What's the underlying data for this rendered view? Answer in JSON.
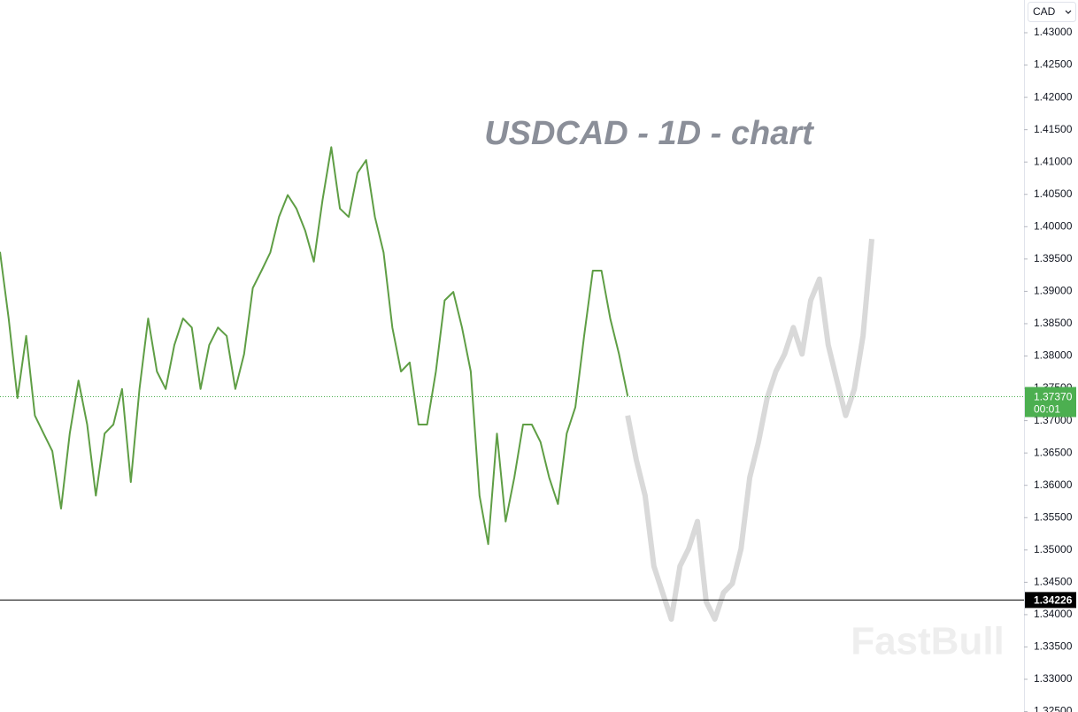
{
  "chart_data": {
    "type": "line",
    "title": "USDCAD - 1D - chart",
    "currency": "CAD",
    "watermark": "FastBull",
    "ylim": [
      1.32494,
      1.43506
    ],
    "yticks": [
      {
        "value": 1.43,
        "label": "1.43000"
      },
      {
        "value": 1.425,
        "label": "1.42500"
      },
      {
        "value": 1.42,
        "label": "1.42000"
      },
      {
        "value": 1.415,
        "label": "1.41500"
      },
      {
        "value": 1.41,
        "label": "1.41000"
      },
      {
        "value": 1.405,
        "label": "1.40500"
      },
      {
        "value": 1.4,
        "label": "1.40000"
      },
      {
        "value": 1.395,
        "label": "1.39500"
      },
      {
        "value": 1.39,
        "label": "1.39000"
      },
      {
        "value": 1.385,
        "label": "1.38500"
      },
      {
        "value": 1.38,
        "label": "1.38000"
      },
      {
        "value": 1.375,
        "label": "1.37500"
      },
      {
        "value": 1.37,
        "label": "1.37000"
      },
      {
        "value": 1.365,
        "label": "1.36500"
      },
      {
        "value": 1.36,
        "label": "1.36000"
      },
      {
        "value": 1.355,
        "label": "1.35500"
      },
      {
        "value": 1.35,
        "label": "1.35000"
      },
      {
        "value": 1.345,
        "label": "1.34500"
      },
      {
        "value": 1.34,
        "label": "1.34000"
      },
      {
        "value": 1.335,
        "label": "1.33500"
      },
      {
        "value": 1.33,
        "label": "1.33000"
      },
      {
        "value": 1.325,
        "label": "1.32500"
      }
    ],
    "current_price": {
      "value": 1.3737,
      "label": "1.37370",
      "timer": "00:01",
      "color": "#4caf50"
    },
    "level_line": {
      "value": 1.34226,
      "label": "1.34226",
      "color": "#000000"
    },
    "series": [
      {
        "color": "#5f9e45",
        "values": [
          1.3961,
          1.3858,
          1.3735,
          1.3831,
          1.3708,
          1.368,
          1.3653,
          1.3564,
          1.368,
          1.3762,
          1.3694,
          1.3584,
          1.368,
          1.3694,
          1.3749,
          1.3605,
          1.3749,
          1.3858,
          1.3776,
          1.3749,
          1.3817,
          1.3858,
          1.3844,
          1.3749,
          1.3817,
          1.3844,
          1.3831,
          1.3749,
          1.3803,
          1.3905,
          1.3932,
          1.396,
          1.4015,
          1.4049,
          1.4028,
          1.3994,
          1.3946,
          1.4041,
          1.4123,
          1.4028,
          1.4015,
          1.4083,
          1.4103,
          1.4015,
          1.396,
          1.3844,
          1.3776,
          1.379,
          1.3694,
          1.3694,
          1.3776,
          1.3886,
          1.3899,
          1.3844,
          1.3776,
          1.3584,
          1.3509,
          1.368,
          1.3544,
          1.3612,
          1.3694,
          1.3694,
          1.3667,
          1.3612,
          1.3571,
          1.368,
          1.3721,
          1.3831,
          1.3932,
          1.3932,
          1.3858,
          1.3803,
          1.3738,
          null,
          null,
          null,
          null,
          null,
          null,
          null,
          null,
          null,
          null,
          null,
          null,
          null,
          null,
          null,
          null,
          null,
          null,
          null,
          null,
          null,
          null,
          null,
          null,
          null,
          null,
          null,
          null
        ]
      },
      {
        "color": "#d9d9d9",
        "values": [
          null,
          null,
          null,
          null,
          null,
          null,
          null,
          null,
          null,
          null,
          null,
          null,
          null,
          null,
          null,
          null,
          null,
          null,
          null,
          null,
          null,
          null,
          null,
          null,
          null,
          null,
          null,
          null,
          null,
          null,
          null,
          null,
          null,
          null,
          null,
          null,
          null,
          null,
          null,
          null,
          null,
          null,
          null,
          null,
          null,
          null,
          null,
          null,
          null,
          null,
          null,
          null,
          null,
          null,
          null,
          null,
          null,
          null,
          null,
          null,
          null,
          null,
          null,
          null,
          null,
          null,
          null,
          null,
          null,
          null,
          null,
          null,
          1.3708,
          1.3639,
          1.3584,
          1.3475,
          1.3434,
          1.3393,
          1.3475,
          1.3502,
          1.3544,
          1.342,
          1.3393,
          1.3434,
          1.3448,
          1.3502,
          1.3612,
          1.3667,
          1.3735,
          1.3776,
          1.3803,
          1.3844,
          1.3803,
          1.3886,
          1.3919,
          1.3817,
          1.3762,
          1.3708,
          1.3749,
          1.3831,
          1.3981
        ]
      }
    ]
  }
}
